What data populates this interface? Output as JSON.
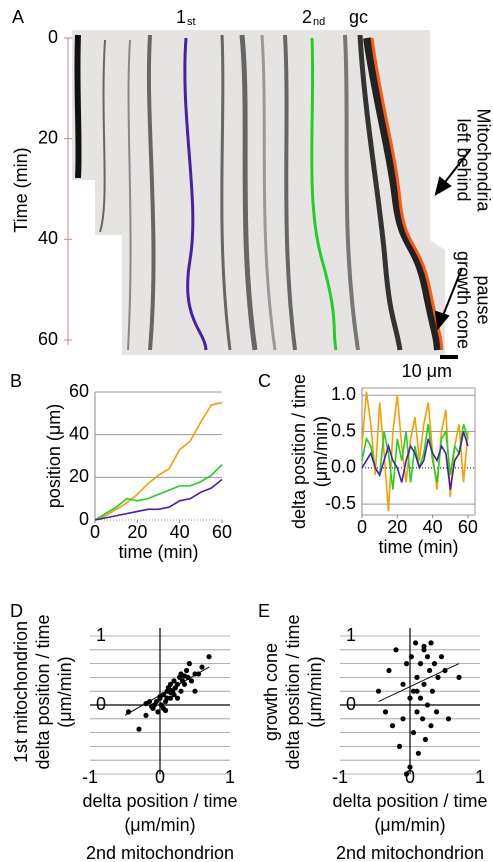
{
  "chart_data": [
    {
      "type": "image",
      "panel": "A",
      "ylabel": [
        "Time (min)"
      ],
      "ylim": [
        0,
        60
      ],
      "yticks": [
        0,
        20,
        40,
        60
      ],
      "track_labels": [
        {
          "main": "1",
          "sub": "st"
        },
        {
          "main": "2",
          "sub": "nd"
        },
        {
          "main": "gc"
        }
      ],
      "annotations": [
        [
          "Mitochondria",
          "left behind"
        ],
        [
          "growth cone",
          "pause"
        ]
      ],
      "scale_label": "10 μm"
    },
    {
      "type": "line",
      "panel": "B",
      "xlabel": [
        "time (min)"
      ],
      "ylabel": [
        "position (μm)"
      ],
      "x": [
        0,
        5,
        10,
        15,
        20,
        25,
        30,
        35,
        40,
        45,
        50,
        55,
        60
      ],
      "xlim": [
        0,
        60
      ],
      "xticks": [
        0,
        20,
        40,
        60
      ],
      "ylim": [
        0,
        60
      ],
      "yticks": [
        0,
        20,
        40,
        60
      ],
      "grid": true,
      "series": [
        {
          "color": "#f5a000",
          "values": [
            0,
            2,
            5,
            8,
            12,
            17,
            21,
            24,
            33,
            37,
            46,
            54,
            55
          ]
        },
        {
          "color": "#22d022",
          "values": [
            0,
            3,
            6,
            10,
            9,
            10,
            12,
            14,
            16,
            16,
            18,
            21,
            26
          ]
        },
        {
          "color": "#4a1fa8",
          "values": [
            0,
            1,
            2,
            3,
            4,
            5,
            5,
            6,
            9,
            10,
            13,
            15,
            19
          ]
        }
      ]
    },
    {
      "type": "line",
      "panel": "C",
      "xlabel": [
        "time (min)"
      ],
      "ylabel": [
        "delta position / time",
        "(μm/min)"
      ],
      "x": [
        0,
        2.5,
        5,
        7.5,
        10,
        12.5,
        15,
        17.5,
        20,
        22.5,
        25,
        27.5,
        30,
        32.5,
        35,
        37.5,
        40,
        42.5,
        45,
        47.5,
        50,
        52.5,
        55,
        57.5,
        60
      ],
      "xlim": [
        0,
        64
      ],
      "xticks": [
        0,
        20,
        40,
        60
      ],
      "ylim": [
        -0.65,
        1.1
      ],
      "yticks": [
        -0.5,
        {
          "value": 0,
          "label": "0.0"
        },
        0.5,
        {
          "value": 1,
          "label": "1.0"
        }
      ],
      "grid": true,
      "series": [
        {
          "color": "#f5a000",
          "values": [
            0.3,
            1.05,
            0.6,
            -0.1,
            0.9,
            0.2,
            -0.6,
            0.5,
            1.0,
            0.3,
            -0.2,
            0.4,
            0.7,
            0.1,
            0.6,
            0.9,
            0.2,
            -0.3,
            0.5,
            0.8,
            -0.4,
            0.3,
            0.6,
            -0.2,
            0.5
          ]
        },
        {
          "color": "#22d022",
          "values": [
            0.1,
            0.4,
            0.3,
            0.0,
            -0.1,
            0.5,
            0.2,
            -0.3,
            0.4,
            0.1,
            0.5,
            -0.2,
            0.3,
            0.0,
            0.2,
            0.6,
            0.1,
            -0.2,
            0.4,
            0.5,
            -0.1,
            0.3,
            0.2,
            0.6,
            0.4
          ]
        },
        {
          "color": "#4a1fa8",
          "values": [
            0.0,
            0.1,
            0.2,
            0.0,
            -0.1,
            0.1,
            0.3,
            0.1,
            0.0,
            -0.2,
            0.1,
            0.3,
            0.2,
            0.0,
            0.1,
            0.4,
            0.2,
            0.1,
            0.3,
            0.2,
            -0.3,
            0.1,
            0.2,
            0.5,
            0.3
          ]
        }
      ]
    },
    {
      "type": "scatter",
      "panel": "D",
      "xlabel": [
        "delta position / time",
        "(μm/min)"
      ],
      "xlabel_series": "2nd mitochondrion",
      "xlabel_series_color": "#22cc22",
      "ylabel": [
        "delta position / time",
        "(μm/min)"
      ],
      "ylabel_series": "1st mitochondrion",
      "ylabel_series_color": "#3a2aa0",
      "xlim": [
        -1,
        1
      ],
      "xticks": [
        -1,
        0,
        1
      ],
      "ylim": [
        -1,
        1
      ],
      "yticks": [
        0,
        1
      ],
      "color": "#000000",
      "x": [
        -0.45,
        -0.3,
        -0.2,
        -0.15,
        -0.1,
        -0.08,
        -0.05,
        -0.03,
        0,
        0.02,
        0.05,
        0.05,
        0.08,
        0.1,
        0.1,
        0.12,
        0.15,
        0.15,
        0.18,
        0.2,
        0.2,
        0.22,
        0.25,
        0.25,
        0.28,
        0.3,
        0.3,
        0.32,
        0.35,
        0.38,
        0.4,
        0.42,
        0.45,
        0.5,
        0.55,
        0.6,
        0.7,
        -0.12,
        0.0,
        0.08,
        -0.2,
        0.15,
        0.35,
        0.5
      ],
      "y": [
        -0.1,
        -0.35,
        -0.15,
        0.05,
        -0.05,
        0.0,
        0.05,
        -0.1,
        0.1,
        0.0,
        0.15,
        -0.05,
        0.05,
        0.2,
        0.1,
        0.25,
        0.1,
        0.3,
        0.2,
        0.15,
        0.35,
        0.25,
        0.3,
        0.1,
        0.4,
        0.2,
        0.45,
        0.35,
        0.3,
        0.5,
        0.4,
        0.6,
        0.35,
        0.45,
        0.45,
        0.55,
        0.7,
        -0.02,
        0.12,
        -0.08,
        0.02,
        0.18,
        0.42,
        0.2
      ],
      "trendline": {
        "x": [
          -0.5,
          0.7
        ],
        "y": [
          -0.15,
          0.55
        ]
      }
    },
    {
      "type": "scatter",
      "panel": "E",
      "xlabel": [
        "delta position / time",
        "(μm/min)"
      ],
      "xlabel_series": "2nd mitochondrion",
      "xlabel_series_color": "#22cc22",
      "ylabel": [
        "delta position / time",
        "(μm/min)"
      ],
      "ylabel_series": "growth cone",
      "ylabel_series_color": "#f0a020",
      "xlim": [
        -1,
        1
      ],
      "xticks": [
        -1,
        0,
        1
      ],
      "ylim": [
        -1,
        1
      ],
      "yticks": [
        0,
        1
      ],
      "color": "#000000",
      "x": [
        -0.45,
        -0.35,
        -0.3,
        -0.25,
        -0.2,
        -0.15,
        -0.1,
        -0.1,
        -0.05,
        0,
        0,
        0.02,
        0.05,
        0.05,
        0.08,
        0.1,
        0.1,
        0.12,
        0.15,
        0.15,
        0.18,
        0.2,
        0.2,
        0.22,
        0.25,
        0.25,
        0.28,
        0.3,
        0.3,
        0.32,
        0.35,
        0.38,
        0.4,
        0.45,
        0.5,
        0.55,
        0.7,
        -0.05,
        0.1,
        0.2
      ],
      "y": [
        0.2,
        -0.1,
        0.5,
        -0.3,
        0.8,
        -0.6,
        0.3,
        -0.2,
        0.6,
        -0.9,
        0.1,
        0.7,
        -0.4,
        0.2,
        0.9,
        -0.1,
        0.4,
        -0.7,
        0.6,
        0.1,
        -0.2,
        0.8,
        0.3,
        -0.5,
        0.7,
        0.0,
        0.5,
        -0.3,
        0.9,
        0.2,
        0.6,
        -0.1,
        0.4,
        0.7,
        0.5,
        -0.2,
        0.4,
        -1.0,
        0.2,
        0.85
      ],
      "trendline": {
        "x": [
          -0.45,
          0.7
        ],
        "y": [
          0.05,
          0.6
        ]
      }
    }
  ]
}
